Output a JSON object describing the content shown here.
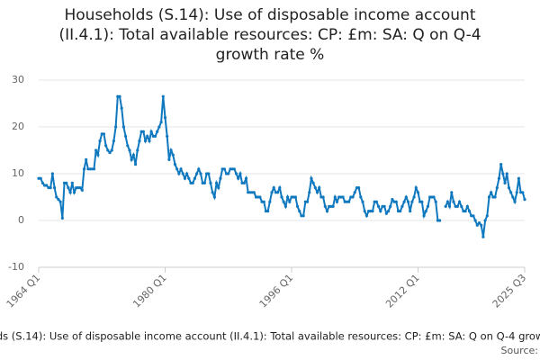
{
  "chart_data": {
    "type": "line",
    "title": "Households (S.14): Use of disposable income account (II.4.1): Total available resources: CP: £m: SA: Q on Q-4 growth rate %",
    "source": "Source:",
    "categories": [
      "1964 Q1",
      null,
      null,
      null,
      null,
      null,
      null,
      null,
      null,
      null,
      null,
      null,
      null,
      null,
      null,
      null,
      null,
      null,
      null,
      null,
      null,
      null,
      null,
      null,
      null,
      null,
      null,
      null,
      null,
      null,
      null,
      null,
      null,
      null,
      null,
      null,
      null,
      null,
      null,
      null,
      null,
      null,
      null,
      null,
      null,
      null,
      null,
      null,
      null,
      null,
      null,
      null,
      null,
      null,
      null,
      null,
      null,
      null,
      null,
      null,
      null,
      null,
      null,
      null,
      "1980 Q1",
      null,
      null,
      null,
      null,
      null,
      null,
      null,
      null,
      null,
      null,
      null,
      null,
      null,
      null,
      null,
      null,
      null,
      null,
      null,
      null,
      null,
      null,
      null,
      null,
      null,
      null,
      null,
      null,
      null,
      null,
      null,
      null,
      null,
      null,
      null,
      null,
      null,
      null,
      null,
      null,
      null,
      null,
      null,
      null,
      null,
      null,
      null,
      null,
      null,
      null,
      null,
      null,
      null,
      null,
      null,
      null,
      null,
      null,
      null,
      null,
      null,
      null,
      null,
      "1996 Q1",
      null,
      null,
      null,
      null,
      null,
      null,
      null,
      null,
      null,
      null,
      null,
      null,
      null,
      null,
      null,
      null,
      null,
      null,
      null,
      null,
      null,
      null,
      null,
      null,
      null,
      null,
      null,
      null,
      null,
      null,
      null,
      null,
      null,
      null,
      null,
      null,
      null,
      null,
      null,
      null,
      null,
      null,
      null,
      null,
      null,
      null,
      null,
      null,
      null,
      null,
      null,
      null,
      null,
      null,
      null,
      null,
      null,
      null,
      null,
      null,
      null,
      null,
      null,
      "2012 Q1",
      null,
      null,
      null,
      null,
      null,
      null,
      null,
      null,
      null,
      null,
      null,
      null,
      null,
      null,
      null,
      null,
      null,
      null,
      null,
      null,
      null,
      null,
      null,
      null,
      null,
      null,
      null,
      null,
      null,
      null,
      null,
      null,
      null,
      null,
      null,
      null,
      null,
      null,
      null,
      null,
      null,
      null,
      null,
      null,
      null,
      null,
      null,
      null,
      null,
      null,
      null,
      null,
      null,
      "2025 Q3"
    ],
    "series": [
      {
        "name": "Households (S.14): Use of disposable income account (II.4.1): Total available resources: CP: £m: SA: Q on Q-4 growth rate %",
        "color": "#0f78be",
        "values": [
          9,
          9,
          8,
          7.5,
          7.5,
          7,
          7,
          10,
          7,
          5,
          4.5,
          4,
          0.5,
          8,
          8,
          7,
          6,
          8,
          6,
          7,
          7,
          7,
          6.5,
          11,
          13,
          11,
          11,
          11,
          11,
          15,
          14,
          17,
          18.5,
          18.5,
          16,
          15,
          14.5,
          15,
          17,
          20,
          26.5,
          26.5,
          24,
          20,
          18,
          16,
          15,
          13,
          14,
          12,
          15,
          17,
          19,
          19,
          17,
          18,
          17,
          19,
          18,
          18,
          19,
          20,
          21,
          26.5,
          22,
          18,
          13,
          15,
          14,
          12,
          11,
          10,
          11,
          10,
          9,
          10,
          9,
          8,
          8,
          9,
          10,
          11,
          10,
          8,
          8,
          10,
          10,
          8,
          6,
          5,
          8,
          7,
          9,
          11,
          11,
          10,
          10,
          11,
          11,
          11,
          10,
          9,
          10,
          8,
          8,
          9,
          6,
          6,
          6,
          6,
          5,
          5,
          5,
          4,
          4,
          2,
          2,
          4,
          6,
          7,
          6,
          6,
          7,
          5,
          4,
          3,
          5,
          4,
          5,
          5,
          5,
          3,
          2,
          1,
          1,
          4,
          4,
          6,
          9,
          8,
          7,
          6,
          7,
          5,
          5,
          3,
          2,
          3,
          3,
          3,
          5,
          4,
          5,
          5,
          5,
          4,
          4,
          4,
          5,
          5,
          6,
          7,
          7,
          5,
          4,
          2,
          1,
          2,
          2,
          2,
          4,
          4,
          3,
          2,
          3,
          3,
          1.5,
          2,
          3,
          4.5,
          4,
          4,
          2,
          2,
          3,
          4,
          5,
          4,
          2,
          4,
          5,
          7,
          6,
          4,
          4,
          1,
          2,
          3,
          5,
          5,
          5,
          4,
          0,
          0,
          null,
          null,
          3,
          4,
          3,
          6,
          4,
          3,
          3,
          4,
          3,
          2,
          2,
          3,
          2,
          1,
          1,
          0,
          -1,
          -0.5,
          -1,
          -3.5,
          0,
          1,
          5,
          6,
          5,
          5,
          7,
          9,
          12,
          10,
          8,
          10,
          7,
          6,
          5,
          4,
          6,
          9,
          6,
          6,
          4.5
        ]
      }
    ],
    "ylim": [
      -10,
      30
    ],
    "yticks": [
      -10,
      0,
      10,
      20,
      30
    ],
    "grid": true
  }
}
